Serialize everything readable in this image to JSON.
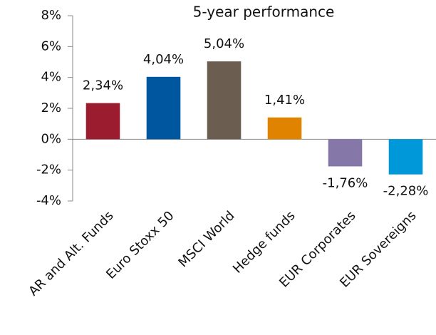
{
  "chart_data": {
    "type": "bar",
    "title": "5-year performance",
    "categories": [
      "AR and Alt. Funds",
      "Euro Stoxx 50",
      "MSCI World",
      "Hedge funds",
      "EUR Corporates",
      "EUR Sovereigns"
    ],
    "values": [
      2.34,
      4.04,
      5.04,
      1.41,
      -1.76,
      -2.28
    ],
    "value_labels": [
      "2,34%",
      "4,04%",
      "5,04%",
      "1,41%",
      "-1,76%",
      "-2,28%"
    ],
    "colors": [
      "#9b1c2e",
      "#0057a0",
      "#6b5d4f",
      "#e08300",
      "#8677a9",
      "#0098d8"
    ],
    "ylim": [
      -4,
      8
    ],
    "yticks": [
      {
        "value": -4,
        "label": "-4%"
      },
      {
        "value": -2,
        "label": "-2%"
      },
      {
        "value": 0,
        "label": "0%"
      },
      {
        "value": 2,
        "label": "2%"
      },
      {
        "value": 4,
        "label": "4%"
      },
      {
        "value": 6,
        "label": "6%"
      },
      {
        "value": 8,
        "label": "8%"
      }
    ],
    "grid": false
  }
}
